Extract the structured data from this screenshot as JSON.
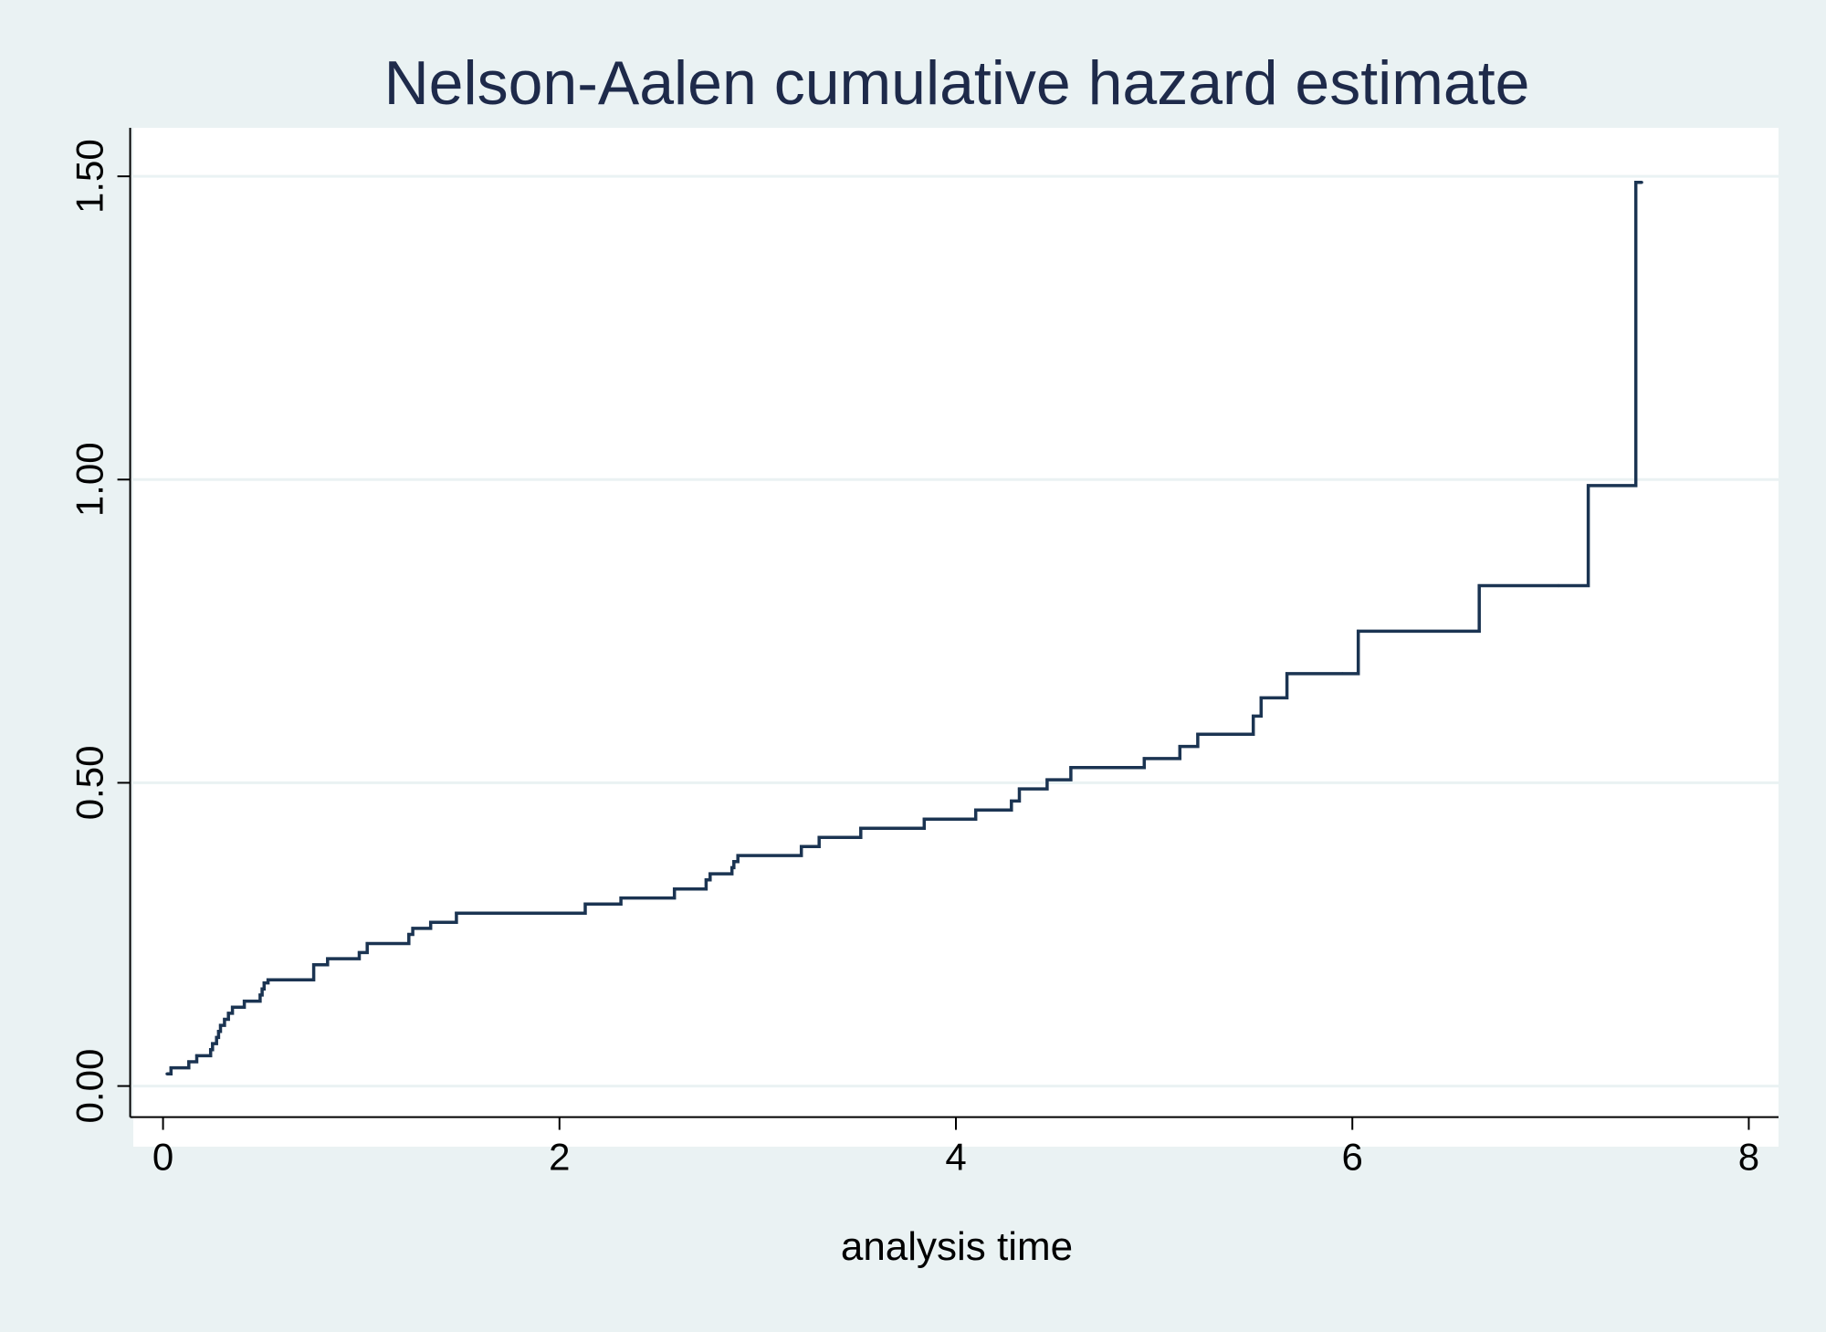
{
  "colors": {
    "background": "#eaf2f3",
    "plot_area": "#ffffff",
    "gridline": "#eaf2f3",
    "series_line": "#1b3452",
    "title_text": "#1e2a4a",
    "axis_text": "#000000"
  },
  "chart_data": {
    "type": "line",
    "title": "Nelson-Aalen cumulative hazard estimate",
    "xlabel": "analysis time",
    "ylabel": "",
    "xlim": [
      -0.15,
      8.15
    ],
    "ylim": [
      -0.1,
      1.58
    ],
    "x_ticks": [
      0,
      2,
      4,
      6,
      8
    ],
    "x_tick_labels": [
      "0",
      "2",
      "4",
      "6",
      "8"
    ],
    "y_ticks": [
      0,
      0.5,
      1,
      1.5
    ],
    "y_tick_labels": [
      "0.00",
      "0.50",
      "1.00",
      "1.50"
    ],
    "grid": true,
    "legend": "none",
    "series": [
      {
        "step": "post",
        "x": [
          0.02,
          0.04,
          0.13,
          0.17,
          0.24,
          0.25,
          0.27,
          0.28,
          0.29,
          0.31,
          0.33,
          0.35,
          0.38,
          0.41,
          0.49,
          0.5,
          0.51,
          0.53,
          0.76,
          0.83,
          0.99,
          1.03,
          1.24,
          1.26,
          1.35,
          1.48,
          1.98,
          2.13,
          2.31,
          2.58,
          2.74,
          2.76,
          2.87,
          2.88,
          2.9,
          3.22,
          3.31,
          3.52,
          3.84,
          4.1,
          4.28,
          4.32,
          4.46,
          4.58,
          4.95,
          5.13,
          5.22,
          5.5,
          5.54,
          5.58,
          5.67,
          5.95,
          6.03,
          6.64,
          7.04,
          7.19,
          7.43,
          7.46
        ],
        "y": [
          0.02,
          0.03,
          0.04,
          0.05,
          0.06,
          0.07,
          0.08,
          0.09,
          0.1,
          0.11,
          0.12,
          0.13,
          0.13,
          0.14,
          0.15,
          0.16,
          0.17,
          0.175,
          0.2,
          0.21,
          0.22,
          0.235,
          0.25,
          0.26,
          0.27,
          0.285,
          0.285,
          0.3,
          0.31,
          0.325,
          0.34,
          0.35,
          0.36,
          0.37,
          0.38,
          0.395,
          0.41,
          0.425,
          0.44,
          0.455,
          0.47,
          0.49,
          0.505,
          0.525,
          0.54,
          0.56,
          0.58,
          0.61,
          0.64,
          0.64,
          0.68,
          0.68,
          0.75,
          0.825,
          0.825,
          0.99,
          1.49,
          1.49
        ]
      }
    ]
  }
}
